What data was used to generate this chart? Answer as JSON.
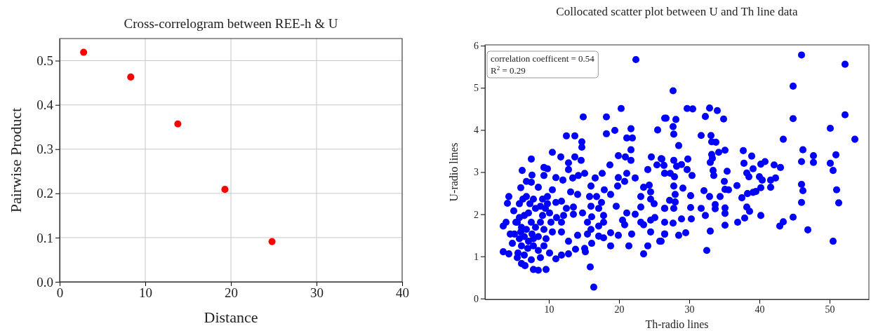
{
  "chart_data": [
    {
      "type": "scatter",
      "title": "Cross-correlogram between REE-h & U",
      "xlabel": "Distance",
      "ylabel": "Pairwise Product",
      "xlim": [
        0,
        40
      ],
      "ylim": [
        0,
        0.55
      ],
      "xticks": [
        0,
        10,
        20,
        30,
        40
      ],
      "yticks": [
        {
          "value": 0,
          "label": "0.0"
        },
        0.1,
        0.2,
        0.3,
        0.4,
        0.5
      ],
      "grid": true,
      "marker": "circle",
      "series": [
        {
          "color": "#ff0000",
          "x": [
            2.8,
            8.3,
            13.8,
            19.3,
            24.8
          ],
          "values": [
            0.519,
            0.463,
            0.357,
            0.209,
            0.091
          ]
        }
      ]
    },
    {
      "type": "scatter",
      "title": "Collocated scatter plot between U and Th line data",
      "xlabel": "Th-radio lines",
      "ylabel": "U-radio lines",
      "xlim": [
        0.9,
        55.6
      ],
      "ylim": [
        -0.02,
        6.02
      ],
      "xticks": [
        10,
        20,
        30,
        40,
        50
      ],
      "yticks": [
        0,
        1,
        2,
        3,
        4,
        5,
        6
      ],
      "grid": false,
      "marker": "circle",
      "annotations": [
        "correlation coefficent = 0.54",
        "R$^{2}$ = 0.29"
      ],
      "series": [
        {
          "color": "#0000ff",
          "x": [
            22.4,
            20.3,
            14.9,
            18.2,
            19.4,
            12.5,
            13.7,
            18.2,
            21.7,
            14.7,
            14.7,
            10.5,
            11.7,
            13.7,
            14.6,
            19.9,
            20.9,
            21.7,
            21.7,
            21.1,
            21.9,
            7.5,
            6.2,
            7.6,
            9.3,
            9.8,
            6.0,
            6.8,
            7.5,
            8.5,
            9.3,
            11.0,
            12.0,
            12.8,
            12.8,
            13.4,
            14.2,
            15.1,
            16.0,
            16.6,
            17.6,
            18.7,
            19.9,
            20.8,
            21.1,
            22.3,
            19.8,
            17.9,
            18.8,
            15.8,
            16.8,
            17.5,
            13.1,
            14.1,
            11.8,
            10.5,
            11.0,
            4.3,
            4.1,
            5.0,
            5.5,
            3.5,
            3.9,
            4.5,
            4.8,
            3.5,
            4.3,
            5.5,
            6.1,
            6.6,
            7.8,
            8.5,
            9.6,
            7.5,
            8.8,
            10.1,
            11.0,
            11.8,
            12.8,
            13.8,
            15.1,
            15.2,
            16.1,
            15.9,
            16.4,
            12.8,
            14.1,
            15.5,
            16.0,
            17.1,
            17.8,
            18.8,
            18.8,
            19.9,
            21.4,
            21.8,
            20.5,
            20.8,
            17.8,
            17.8,
            17.1,
            15.5,
            16.1,
            14.8,
            13.5,
            12.1,
            11.1,
            11.8,
            10.5,
            11.8,
            12.5,
            13.5,
            16.0,
            17.1,
            19.6,
            21.1,
            22.3,
            23.1,
            23.1,
            23.5,
            24.3,
            24.5,
            24.5,
            25.0,
            24.1,
            24.6,
            25.4,
            26.1,
            25.5,
            26.5,
            26.5,
            26.5,
            26.5,
            25.8,
            24.1,
            23.5,
            23.5,
            23.1,
            24.5,
            25.1,
            24.5,
            5.8,
            6.3,
            6.8,
            7.3,
            7.8,
            8.1,
            7.1,
            6.5,
            5.8,
            5.3,
            6.1,
            6.8,
            7.5,
            8.1,
            8.8,
            9.1,
            9.5,
            9.8,
            10.1,
            8.5,
            7.8,
            7.1,
            6.5,
            5.8,
            5.1,
            6.1,
            7.0,
            7.8,
            8.5,
            9.3,
            9.6,
            9.3,
            10.3,
            5.6,
            6.5,
            9.1,
            8.8,
            9.8,
            6.0,
            7.6,
            46.0,
            52.2,
            44.8,
            27.7,
            29.7,
            30.5,
            32.9,
            34.0,
            32.3,
            26.7,
            28.1,
            34.9,
            44.8,
            52.2,
            27.7,
            27.8,
            31.7,
            33.1,
            33.2,
            33.8,
            43.4,
            53.6,
            50.1,
            28.5,
            37.7,
            38.9,
            46.2,
            47.7,
            47.7,
            50.9,
            35.1,
            34.2,
            33.2,
            33.3,
            33.0,
            29.8,
            27.8,
            26.0,
            26.4,
            28.2,
            28.9,
            29.7,
            30.4,
            26.5,
            27.3,
            27.9,
            33.4,
            33.5,
            35.4,
            37.8,
            39.1,
            38.2,
            38.5,
            40.2,
            40.8,
            42.1,
            43.0,
            40.0,
            40.4,
            42.3,
            41.6,
            41.6,
            40.2,
            46.0,
            50.1,
            50.5,
            46.0,
            46.2,
            51.0,
            46.0,
            51.3,
            44.8,
            43.4,
            42.9,
            46.9,
            50.5,
            32.5,
            33.0,
            35.1,
            36.9,
            37.9,
            40.2,
            38.6,
            38.2,
            39.5,
            39.1,
            38.3,
            37.5,
            36.8,
            35.0,
            35.1,
            35.6,
            34.4,
            33.7,
            33.7,
            32.9,
            32.1,
            35.1,
            35.1,
            32.3,
            31.7,
            30.2,
            30.2,
            30.3,
            29.1,
            28.0,
            28.0,
            27.8,
            27.2,
            26.5,
            28.9,
            27.7,
            26.5,
            26.5,
            28.5,
            29.5,
            26.0,
            27.8
          ],
          "values": [
            5.67,
            4.51,
            4.31,
            4.31,
            3.99,
            3.86,
            3.86,
            3.91,
            4.03,
            3.72,
            3.59,
            3.47,
            3.36,
            3.36,
            3.28,
            3.39,
            3.36,
            3.53,
            3.28,
            3.81,
            3.81,
            3.31,
            3.04,
            2.93,
            3.11,
            3.08,
            2.63,
            2.78,
            2.76,
            2.64,
            2.92,
            2.87,
            2.81,
            3.22,
            3.06,
            2.86,
            2.92,
            2.97,
            2.67,
            2.86,
            2.97,
            3.17,
            2.87,
            2.78,
            2.97,
            2.86,
            2.67,
            2.58,
            2.47,
            2.42,
            2.42,
            2.28,
            2.53,
            2.47,
            2.31,
            2.58,
            2.28,
            2.42,
            2.26,
            2.08,
            1.81,
            1.72,
            1.81,
            1.53,
            1.31,
            1.11,
            1.06,
            0.97,
            0.83,
            0.78,
            0.69,
            0.67,
            0.69,
            0.92,
            0.97,
            1.08,
            0.94,
            1.03,
            1.06,
            1.17,
            1.19,
            1.11,
            1.31,
            0.75,
            0.27,
            1.36,
            1.5,
            1.53,
            1.64,
            1.48,
            1.44,
            1.56,
            1.25,
            1.5,
            1.25,
            1.53,
            1.86,
            1.75,
            1.81,
            1.97,
            1.72,
            1.81,
            1.94,
            2.03,
            2.0,
            1.97,
            1.92,
            1.81,
            1.58,
            1.58,
            2.14,
            2.17,
            2.19,
            2.14,
            2.19,
            2.03,
            2.0,
            2.17,
            2.42,
            2.64,
            2.69,
            2.53,
            2.36,
            2.25,
            3.06,
            3.36,
            3.17,
            3.31,
            4.0,
            4.28,
            2.97,
            2.14,
            1.53,
            1.36,
            1.25,
            1.06,
            1.75,
            1.81,
            1.58,
            1.92,
            1.86,
            2.25,
            2.36,
            2.42,
            2.25,
            2.36,
            2.14,
            2.03,
            1.97,
            1.92,
            1.81,
            1.69,
            1.64,
            1.81,
            1.69,
            1.81,
            1.97,
            2.14,
            2.25,
            2.03,
            1.47,
            1.42,
            1.36,
            1.47,
            1.42,
            1.53,
            1.25,
            1.19,
            1.25,
            1.14,
            1.25,
            1.42,
            1.64,
            1.81,
            1.08,
            1.03,
            2.36,
            2.19,
            2.42,
            1.58,
            1.53,
            5.78,
            5.56,
            5.04,
            4.93,
            4.51,
            4.5,
            4.52,
            4.46,
            4.32,
            4.28,
            4.25,
            4.26,
            4.27,
            4.36,
            4.08,
            3.9,
            3.87,
            3.87,
            3.72,
            3.71,
            3.78,
            3.78,
            4.04,
            3.63,
            3.51,
            3.38,
            3.53,
            3.39,
            3.23,
            3.41,
            3.52,
            3.47,
            3.42,
            3.33,
            3.23,
            3.31,
            3.28,
            3.32,
            3.16,
            3.14,
            3.18,
            3.06,
            2.92,
            2.97,
            2.97,
            2.89,
            3.04,
            2.92,
            3.02,
            3.21,
            3.08,
            2.98,
            2.89,
            3.19,
            3.25,
            3.17,
            3.11,
            2.89,
            2.81,
            2.86,
            2.81,
            2.64,
            2.63,
            3.25,
            3.21,
            3.04,
            2.71,
            2.56,
            2.58,
            2.28,
            2.27,
            1.93,
            1.82,
            1.72,
            1.63,
            1.36,
            1.14,
            1.6,
            1.74,
            1.81,
            1.91,
            1.97,
            2.07,
            2.17,
            2.54,
            2.52,
            2.49,
            2.39,
            2.68,
            2.78,
            2.59,
            2.58,
            2.42,
            2.23,
            2.13,
            2.42,
            2.56,
            2.15,
            2.02,
            1.97,
            2.14,
            2.44,
            2.16,
            1.89,
            2.62,
            2.47,
            2.29,
            2.14,
            2.33,
            2.14,
            1.89,
            1.79,
            1.81,
            1.53,
            1.5,
            1.56,
            1.36,
            2.67
          ]
        }
      ]
    }
  ]
}
